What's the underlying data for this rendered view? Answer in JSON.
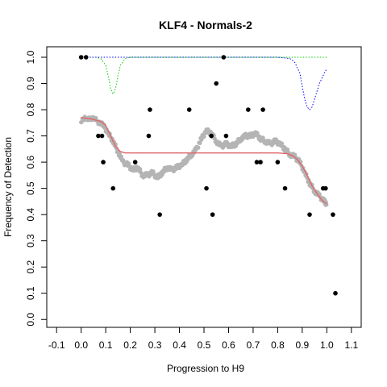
{
  "chart_data": {
    "type": "scatter",
    "title": "KLF4 - Normals-2",
    "xlabel": "Progression to H9",
    "ylabel": "Frequency of Detection",
    "xlim": [
      -0.14,
      1.14
    ],
    "ylim": [
      -0.03,
      1.04
    ],
    "xticks": [
      "-0.1",
      "0.0",
      "0.1",
      "0.2",
      "0.3",
      "0.4",
      "0.5",
      "0.6",
      "0.7",
      "0.8",
      "0.9",
      "1.0",
      "1.1"
    ],
    "xtick_values": [
      -0.1,
      0.0,
      0.1,
      0.2,
      0.3,
      0.4,
      0.5,
      0.6,
      0.7,
      0.8,
      0.9,
      1.0,
      1.1
    ],
    "yticks": [
      "0.0",
      "0.1",
      "0.2",
      "0.3",
      "0.4",
      "0.5",
      "0.6",
      "0.7",
      "0.8",
      "0.9",
      "1.0"
    ],
    "ytick_values": [
      0.0,
      0.1,
      0.2,
      0.3,
      0.4,
      0.5,
      0.6,
      0.7,
      0.8,
      0.9,
      1.0
    ],
    "grid": false,
    "colors": {
      "points": "#000000",
      "smooth": "#b4b4b4",
      "fit": "#e06666",
      "green_dotted": "#00cc00",
      "blue_dotted": "#0000ff"
    },
    "series": [
      {
        "kind": "points",
        "x": [
          0.0,
          0.02,
          0.07,
          0.085,
          0.09,
          0.13,
          0.22,
          0.275,
          0.28,
          0.32,
          0.44,
          0.51,
          0.53,
          0.535,
          0.55,
          0.58,
          0.59,
          0.68,
          0.715,
          0.73,
          0.74,
          0.8,
          0.83,
          0.93,
          0.985,
          0.995,
          1.025,
          1.035
        ],
        "y": [
          1.0,
          1.0,
          0.7,
          0.7,
          0.6,
          0.5,
          0.6,
          0.7,
          0.8,
          0.4,
          0.8,
          0.5,
          0.7,
          0.4,
          0.9,
          1.0,
          0.7,
          0.8,
          0.6,
          0.6,
          0.8,
          0.6,
          0.5,
          0.4,
          0.5,
          0.5,
          0.4,
          0.1
        ]
      },
      {
        "kind": "smooth",
        "x": [
          0.0,
          0.03,
          0.06,
          0.09,
          0.11,
          0.13,
          0.15,
          0.17,
          0.19,
          0.21,
          0.23,
          0.25,
          0.27,
          0.29,
          0.31,
          0.33,
          0.35,
          0.37,
          0.39,
          0.41,
          0.43,
          0.45,
          0.47,
          0.49,
          0.51,
          0.53,
          0.55,
          0.57,
          0.59,
          0.61,
          0.63,
          0.65,
          0.67,
          0.69,
          0.71,
          0.73,
          0.75,
          0.77,
          0.79,
          0.81,
          0.83,
          0.85,
          0.87,
          0.89,
          0.91,
          0.93,
          0.95,
          0.97,
          0.99,
          1.0
        ],
        "y": [
          0.76,
          0.77,
          0.76,
          0.74,
          0.71,
          0.68,
          0.64,
          0.6,
          0.59,
          0.57,
          0.58,
          0.55,
          0.55,
          0.56,
          0.54,
          0.56,
          0.58,
          0.57,
          0.58,
          0.59,
          0.61,
          0.63,
          0.65,
          0.69,
          0.72,
          0.71,
          0.68,
          0.66,
          0.67,
          0.66,
          0.67,
          0.69,
          0.7,
          0.7,
          0.71,
          0.69,
          0.68,
          0.67,
          0.68,
          0.67,
          0.65,
          0.63,
          0.62,
          0.6,
          0.56,
          0.52,
          0.49,
          0.47,
          0.45,
          0.44
        ]
      },
      {
        "kind": "fit",
        "x": [
          0.0,
          0.04,
          0.08,
          0.1,
          0.12,
          0.14,
          0.16,
          0.18,
          0.25,
          0.4,
          0.55,
          0.7,
          0.8,
          0.84,
          0.86,
          0.88,
          0.9,
          0.92,
          0.94,
          0.96,
          0.98,
          1.0
        ],
        "y": [
          0.77,
          0.765,
          0.755,
          0.74,
          0.7,
          0.66,
          0.64,
          0.635,
          0.635,
          0.635,
          0.635,
          0.635,
          0.635,
          0.632,
          0.625,
          0.61,
          0.585,
          0.55,
          0.51,
          0.48,
          0.455,
          0.44
        ]
      },
      {
        "kind": "green_dotted",
        "x": [
          0.0,
          0.06,
          0.08,
          0.1,
          0.11,
          0.12,
          0.13,
          0.14,
          0.15,
          0.16,
          0.18,
          0.2,
          0.25,
          0.5,
          0.8,
          1.0
        ],
        "y": [
          1.0,
          1.0,
          0.995,
          0.97,
          0.93,
          0.88,
          0.86,
          0.88,
          0.93,
          0.97,
          0.995,
          1.0,
          1.0,
          1.0,
          1.0,
          1.0
        ]
      },
      {
        "kind": "blue_dotted",
        "x": [
          0.0,
          0.2,
          0.5,
          0.8,
          0.85,
          0.87,
          0.89,
          0.9,
          0.91,
          0.92,
          0.93,
          0.94,
          0.95,
          0.97,
          0.99,
          1.0
        ],
        "y": [
          1.0,
          1.0,
          1.0,
          1.0,
          0.995,
          0.98,
          0.94,
          0.89,
          0.84,
          0.81,
          0.8,
          0.81,
          0.84,
          0.9,
          0.94,
          0.955
        ]
      }
    ]
  }
}
